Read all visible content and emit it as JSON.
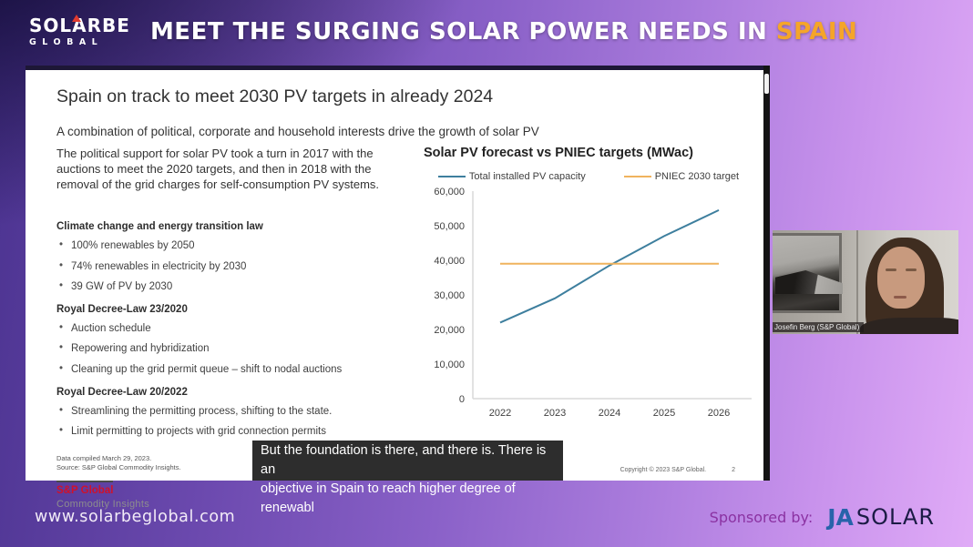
{
  "header": {
    "logo_line1": "SOLARBE",
    "logo_line2": "GLOBAL",
    "title_main": "MEET THE SURGING SOLAR POWER NEEDS IN ",
    "title_highlight": "SPAIN",
    "highlight_color": "#f5a529"
  },
  "slide": {
    "title": "Spain on track to meet 2030 PV targets in already 2024",
    "subtitle": "A combination of political, corporate and household interests drive the growth of solar PV",
    "paragraph": "The political support for solar PV took a turn in 2017 with the auctions to meet the 2020 targets, and then in 2018 with the removal of the grid charges for self-consumption PV systems.",
    "sections": [
      {
        "heading": "Climate change and energy transition law",
        "bullets": [
          "100% renewables by 2050",
          "74% renewables in electricity by 2030",
          "39 GW of PV by 2030"
        ]
      },
      {
        "heading": "Royal Decree-Law 23/2020",
        "bullets": [
          "Auction schedule",
          "Repowering and hybridization",
          "Cleaning up the grid permit queue – shift to nodal auctions"
        ]
      },
      {
        "heading": "Royal Decree-Law 20/2022",
        "bullets": [
          "Streamlining the permitting process, shifting to the state.",
          "Limit permitting to projects with grid connection permits"
        ]
      }
    ],
    "footnote_line1": "Data compiled March 29, 2023.",
    "footnote_line2": "Source: S&P Global Commodity Insights.",
    "brand_line1": "S&P Global",
    "brand_line2": "Commodity Insights",
    "copyright": "Copyright © 2023 S&P Global.",
    "page_number": "2"
  },
  "chart_data": {
    "type": "line",
    "title": "Solar PV forecast vs PNIEC targets (MWac)",
    "x": [
      "2022",
      "2023",
      "2024",
      "2025",
      "2026"
    ],
    "series": [
      {
        "name": "Total installed PV capacity",
        "color": "#3e7f9e",
        "values": [
          22000,
          29000,
          38500,
          47000,
          54500
        ]
      },
      {
        "name": "PNIEC 2030 target",
        "color": "#f0b35e",
        "values": [
          39000,
          39000,
          39000,
          39000,
          39000
        ]
      }
    ],
    "ylabel": "",
    "xlabel": "",
    "ylim": [
      0,
      60000
    ],
    "ytick_step": 10000,
    "legend_position": "top",
    "grid": false
  },
  "webcam": {
    "name_label": "Josefin Berg (S&P Global)"
  },
  "caption": {
    "line1": "But the foundation is there, and there is. There is an",
    "line2": "objective in Spain to reach higher degree of renewabl"
  },
  "footer": {
    "website": "www.solarbeglobal.com",
    "sponsored_label": "Sponsored by:",
    "sponsor_name_ja": "JA",
    "sponsor_name_solar": "SOLAR"
  }
}
